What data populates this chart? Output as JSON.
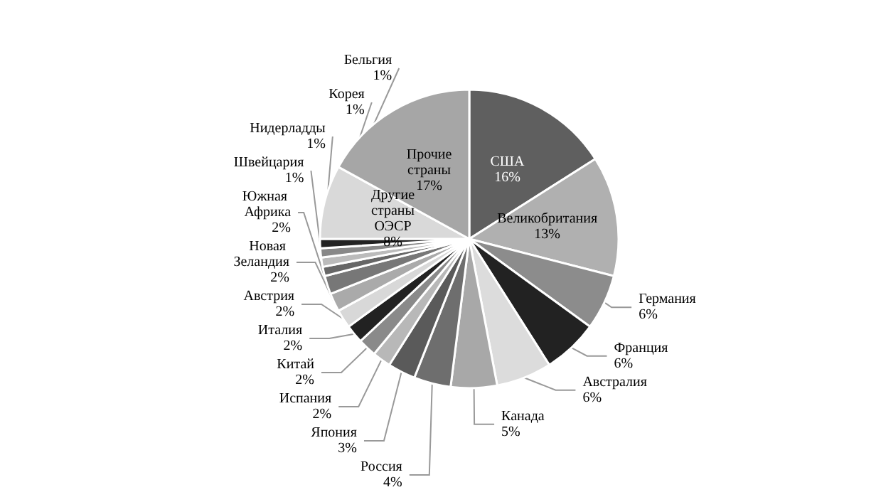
{
  "chart_data": {
    "type": "pie",
    "categories": [
      "США",
      "Великобритания",
      "Германия",
      "Франция",
      "Австралия",
      "Канада",
      "Россия",
      "Япония",
      "Испания",
      "Китай",
      "Италия",
      "Австрия",
      "Новая Зеландия",
      "Южная Африка",
      "Швейцария",
      "Нидерладды",
      "Корея",
      "Бельгия",
      "Другие страны ОЭСР",
      "Прочие страны"
    ],
    "values": [
      16,
      13,
      6,
      6,
      6,
      5,
      4,
      3,
      2,
      2,
      2,
      2,
      2,
      2,
      1,
      1,
      1,
      1,
      8,
      17
    ],
    "value_labels": [
      "16%",
      "13%",
      "6%",
      "6%",
      "6%",
      "5%",
      "4%",
      "3%",
      "2%",
      "2%",
      "2%",
      "2%",
      "2%",
      "2%",
      "1%",
      "1%",
      "1%",
      "1%",
      "8%",
      "17%"
    ],
    "colors": [
      "#5f5f5f",
      "#b0b0b0",
      "#8c8c8c",
      "#222222",
      "#dcdcdc",
      "#a8a8a8",
      "#6e6e6e",
      "#5a5a5a",
      "#b8b8b8",
      "#8a8a8a",
      "#222222",
      "#d8d8d8",
      "#aaaaaa",
      "#777777",
      "#666666",
      "#bbbbbb",
      "#888888",
      "#222222",
      "#d9d9d9",
      "#a6a6a6"
    ],
    "legend": false
  }
}
